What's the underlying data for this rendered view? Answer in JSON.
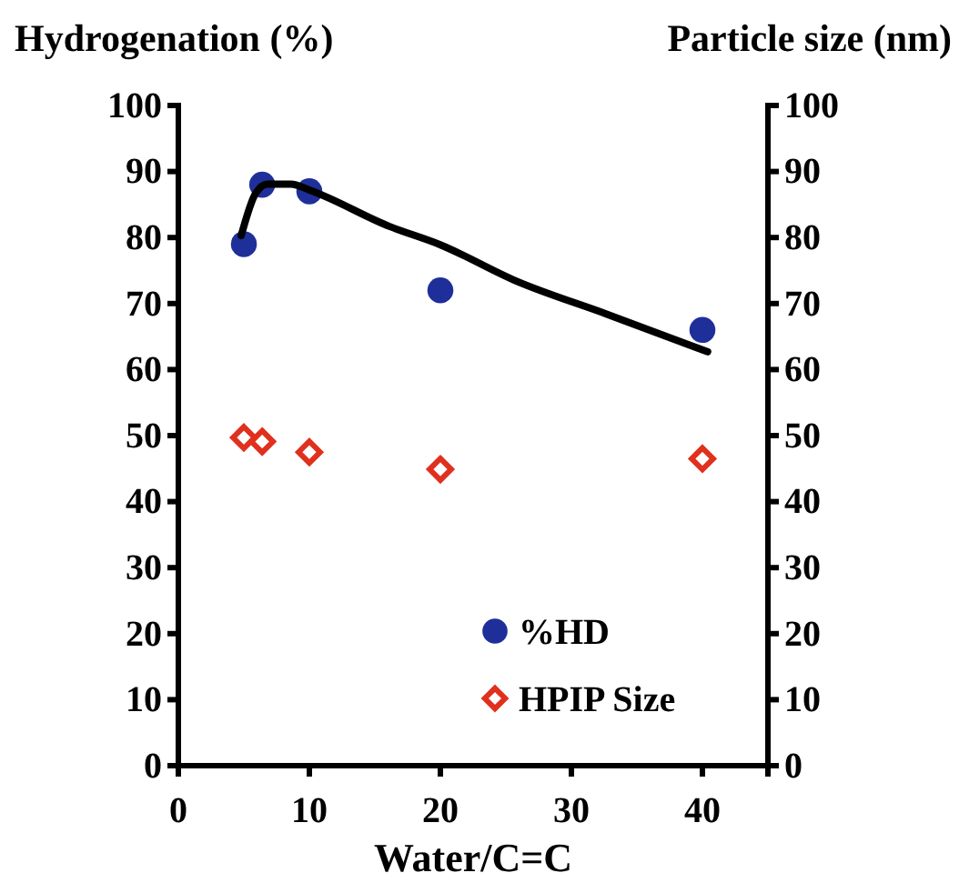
{
  "chart_data": {
    "type": "scatter",
    "ylabel": "Hydrogenation (%)",
    "y2label": "Particle size (nm)",
    "xlabel": "Water/C=C",
    "xlim": [
      0,
      45
    ],
    "xticks": [
      0,
      10,
      20,
      30,
      40
    ],
    "ylim": [
      0,
      100
    ],
    "yticks": [
      0,
      10,
      20,
      30,
      40,
      50,
      60,
      70,
      80,
      90,
      100
    ],
    "y2lim": [
      0,
      100
    ],
    "y2ticks": [
      0,
      10,
      20,
      30,
      40,
      50,
      60,
      70,
      80,
      90,
      100
    ],
    "legend": "bottom right",
    "grid": false,
    "series": [
      {
        "name": "%HD",
        "marker": "circle",
        "color": "#1f2f9a",
        "x": [
          5,
          6.4,
          10,
          20,
          40
        ],
        "values": [
          79,
          88,
          87,
          72,
          66
        ]
      },
      {
        "name": "HPIP Size",
        "marker": "diamond",
        "color": "#e0301e",
        "x": [
          5,
          6.4,
          10,
          20,
          40
        ],
        "values": [
          49.7,
          49.1,
          47.5,
          44.9,
          46.5
        ]
      },
      {
        "type": "line",
        "marker": "none",
        "color": "#000000",
        "x": [
          4.8,
          5.9,
          6.8,
          8.6,
          10,
          16.1,
          20,
          25.8,
          32.7,
          40.4
        ],
        "values": [
          80.3,
          86.7,
          88.1,
          88.1,
          87.2,
          81.7,
          78.9,
          73.4,
          68.4,
          62.7
        ]
      }
    ]
  }
}
